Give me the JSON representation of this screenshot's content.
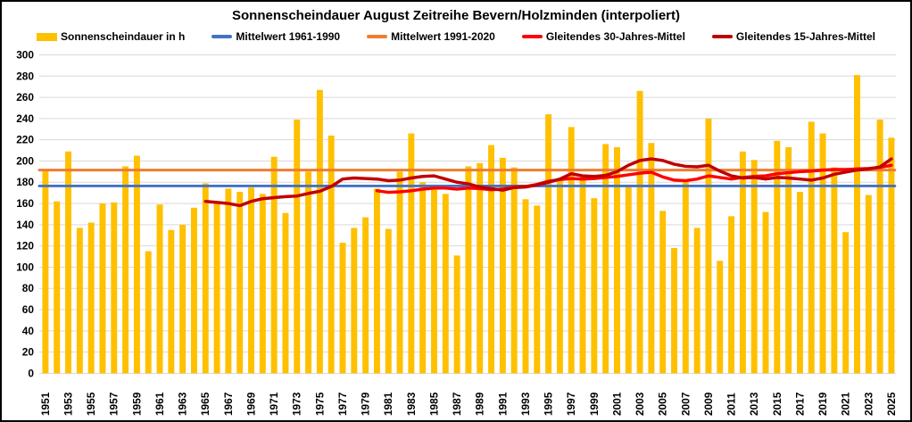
{
  "title": "Sonnenscheindauer August Zeitreihe Bevern/Holzminden (interpoliert)",
  "legend": [
    {
      "label": "Sonnenscheindauer in h",
      "color": "#FFC000",
      "swatch": "bar"
    },
    {
      "label": "Mittelwert 1961-1990",
      "color": "#4472C4",
      "swatch": "line"
    },
    {
      "label": "Mittelwert 1991-2020",
      "color": "#ED7D31",
      "swatch": "line"
    },
    {
      "label": "Gleitendes 30-Jahres-Mittel",
      "color": "#FF0000",
      "swatch": "line"
    },
    {
      "label": "Gleitendes 15-Jahres-Mittel",
      "color": "#C00000",
      "swatch": "line"
    }
  ],
  "colors": {
    "background": "#FFFFFF",
    "border": "#000000",
    "grid": "#D9D9D9",
    "text": "#000000",
    "bar": "#FFC000",
    "mean_1961_1990": "#4472C4",
    "mean_1991_2020": "#ED7D31",
    "moving_30yr": "#FF0000",
    "moving_15yr": "#C00000"
  },
  "chart_data": {
    "type": "bar",
    "title": "Sonnenscheindauer August Zeitreihe Bevern/Holzminden (interpoliert)",
    "xlabel": "",
    "ylabel": "",
    "ylim": [
      0,
      300
    ],
    "ytick_step": 20,
    "grid": true,
    "legend_position": "top",
    "y_ticks": [
      0,
      20,
      40,
      60,
      80,
      100,
      120,
      140,
      160,
      180,
      200,
      220,
      240,
      260,
      280,
      300
    ],
    "x_ticks": [
      1951,
      1953,
      1955,
      1957,
      1959,
      1961,
      1963,
      1965,
      1967,
      1969,
      1971,
      1973,
      1975,
      1977,
      1979,
      1981,
      1983,
      1985,
      1987,
      1989,
      1991,
      1993,
      1995,
      1997,
      1999,
      2001,
      2003,
      2005,
      2007,
      2009,
      2011,
      2013,
      2015,
      2017,
      2019,
      2021,
      2023,
      2025
    ],
    "categories": [
      1951,
      1952,
      1953,
      1954,
      1955,
      1956,
      1957,
      1958,
      1959,
      1960,
      1961,
      1962,
      1963,
      1964,
      1965,
      1966,
      1967,
      1968,
      1969,
      1970,
      1971,
      1972,
      1973,
      1974,
      1975,
      1976,
      1977,
      1978,
      1979,
      1980,
      1981,
      1982,
      1983,
      1984,
      1985,
      1986,
      1987,
      1988,
      1989,
      1990,
      1991,
      1992,
      1993,
      1994,
      1995,
      1996,
      1997,
      1998,
      1999,
      2000,
      2001,
      2002,
      2003,
      2004,
      2005,
      2006,
      2007,
      2008,
      2009,
      2010,
      2011,
      2012,
      2013,
      2014,
      2015,
      2016,
      2017,
      2018,
      2019,
      2020,
      2021,
      2022,
      2023,
      2024,
      2025
    ],
    "series": [
      {
        "name": "Sonnenscheindauer in h",
        "type": "bar",
        "color": "#FFC000",
        "values": [
          192,
          162,
          209,
          137,
          142,
          160,
          161,
          195,
          205,
          115,
          159,
          135,
          140,
          156,
          179,
          162,
          174,
          171,
          175,
          169,
          204,
          151,
          239,
          190,
          267,
          224,
          123,
          137,
          147,
          174,
          136,
          190,
          226,
          180,
          176,
          169,
          111,
          195,
          198,
          215,
          203,
          194,
          164,
          158,
          244,
          184,
          232,
          185,
          165,
          216,
          213,
          177,
          266,
          217,
          153,
          118,
          182,
          137,
          240,
          106,
          148,
          209,
          201,
          152,
          219,
          213,
          171,
          237,
          226,
          194,
          133,
          281,
          168,
          239,
          222
        ]
      },
      {
        "name": "Mittelwert 1961-1990",
        "type": "hline",
        "color": "#4472C4",
        "value": 176.5
      },
      {
        "name": "Mittelwert 1991-2020",
        "type": "hline",
        "color": "#ED7D31",
        "value": 191.5
      },
      {
        "name": "Gleitendes 30-Jahres-Mittel",
        "type": "line",
        "color": "#FF0000",
        "start_year": 1980,
        "values": [
          172,
          170.5,
          171,
          172,
          173.5,
          174.5,
          174.5,
          173.5,
          174.5,
          174,
          173,
          173.5,
          175.5,
          176,
          178,
          181,
          182.5,
          183.5,
          183,
          183.5,
          184.5,
          185.5,
          187,
          188.5,
          189.5,
          185,
          182,
          181.5,
          183,
          186,
          184.5,
          183,
          184.5,
          185.5,
          186,
          188,
          189,
          190,
          190.5,
          191.5,
          192,
          192,
          192.5,
          193,
          194,
          196
        ]
      },
      {
        "name": "Gleitendes 15-Jahres-Mittel",
        "type": "line",
        "color": "#C00000",
        "start_year": 1965,
        "values": [
          162,
          161,
          160,
          158,
          162,
          164.5,
          165.5,
          166.5,
          167,
          169.5,
          171.5,
          176,
          183,
          184,
          183.5,
          183,
          181.5,
          182,
          184,
          185.5,
          186,
          183,
          180,
          178.5,
          175.5,
          174,
          172.5,
          175,
          175.5,
          177.5,
          180,
          183,
          188,
          186,
          185.5,
          186.5,
          190,
          196,
          200.5,
          202,
          200.5,
          197,
          195,
          194.5,
          196,
          190.5,
          186,
          184,
          184.5,
          183,
          184.5,
          184,
          183,
          182,
          184,
          187.5,
          189.5,
          191.5,
          192.5,
          194.5,
          202
        ]
      }
    ]
  }
}
